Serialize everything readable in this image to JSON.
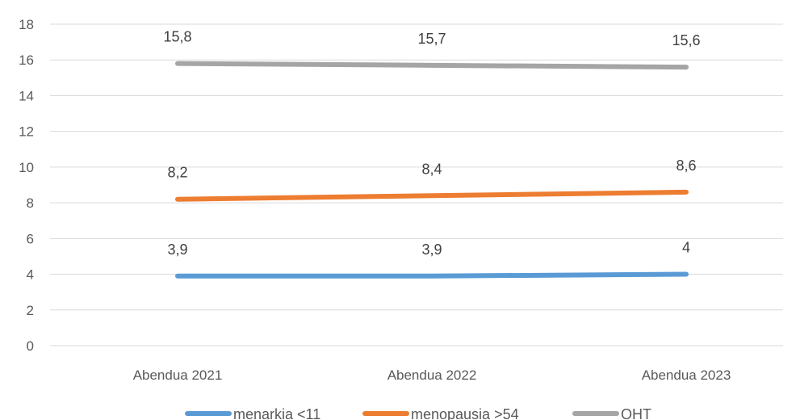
{
  "chart_data": {
    "type": "line",
    "categories": [
      "Abendua 2021",
      "Abendua 2022",
      "Abendua 2023"
    ],
    "series": [
      {
        "name": "menarkia <11",
        "values": [
          3.9,
          3.9,
          4
        ],
        "labels": [
          "3,9",
          "3,9",
          "4"
        ],
        "color": "#5b9bd5"
      },
      {
        "name": "menopausia >54",
        "values": [
          8.2,
          8.4,
          8.6
        ],
        "labels": [
          "8,2",
          "8,4",
          "8,6"
        ],
        "color": "#ed7d31"
      },
      {
        "name": "OHT",
        "values": [
          15.8,
          15.7,
          15.6
        ],
        "labels": [
          "15,8",
          "15,7",
          "15,6"
        ],
        "color": "#a5a5a5"
      }
    ],
    "ylim": [
      0,
      18
    ],
    "yticks": [
      "0",
      "2",
      "4",
      "6",
      "8",
      "10",
      "12",
      "14",
      "16",
      "18"
    ],
    "grid": true,
    "legend": "bottom"
  }
}
